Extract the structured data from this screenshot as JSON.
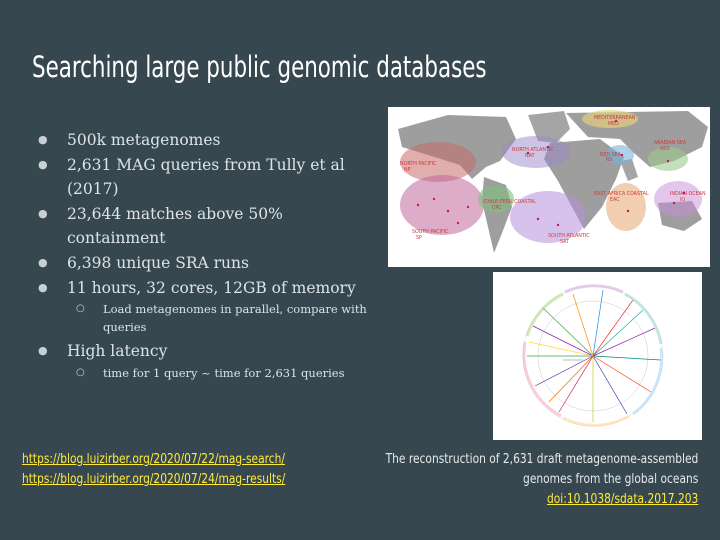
{
  "title": "Searching large public genomic databases",
  "bullets": [
    {
      "text": "500k metagenomes"
    },
    {
      "text": "2,631 MAG queries from Tully et al (2017)"
    },
    {
      "text": "23,644 matches above 50% containment"
    },
    {
      "text": "6,398 unique SRA runs"
    },
    {
      "text": "11 hours, 32 cores, 12GB of memory"
    },
    {
      "text": "Load metagenomes in parallel, compare with queries"
    },
    {
      "text": "High latency"
    },
    {
      "text": "time for 1 query ~ time for 2,631 queries"
    }
  ],
  "links": [
    "https://blog.luizirber.org/2020/07/22/mag-search/",
    "https://blog.luizirber.org/2020/07/24/mag-results/"
  ],
  "caption": {
    "line1": "The reconstruction of 2,631 draft metagenome-assembled",
    "line2": "genomes from the global oceans",
    "doi": "doi:10.1038/sdata.2017.203"
  },
  "map_labels": {
    "med": "MEDITERRANEAN\nMED",
    "rs": "RED SEA\nRS",
    "ars": "ARABIAN SEA\nARS",
    "nat": "NORTH ATLANTIC\nNAT",
    "np": "NORTH PACIFIC\nNP",
    "cpc": "CHILE-PERU COASTAL\nCPC",
    "eac": "EAST AFRICA COASTAL\nEAC",
    "io": "INDIAN OCEAN\nIO",
    "sp": "SOUTH PACIFIC\nSP",
    "sat": "SOUTH ATLANTIC\nSAT"
  },
  "colors": {
    "background": "#37474f",
    "link": "#ffeb3b",
    "title": "#ffffff"
  }
}
